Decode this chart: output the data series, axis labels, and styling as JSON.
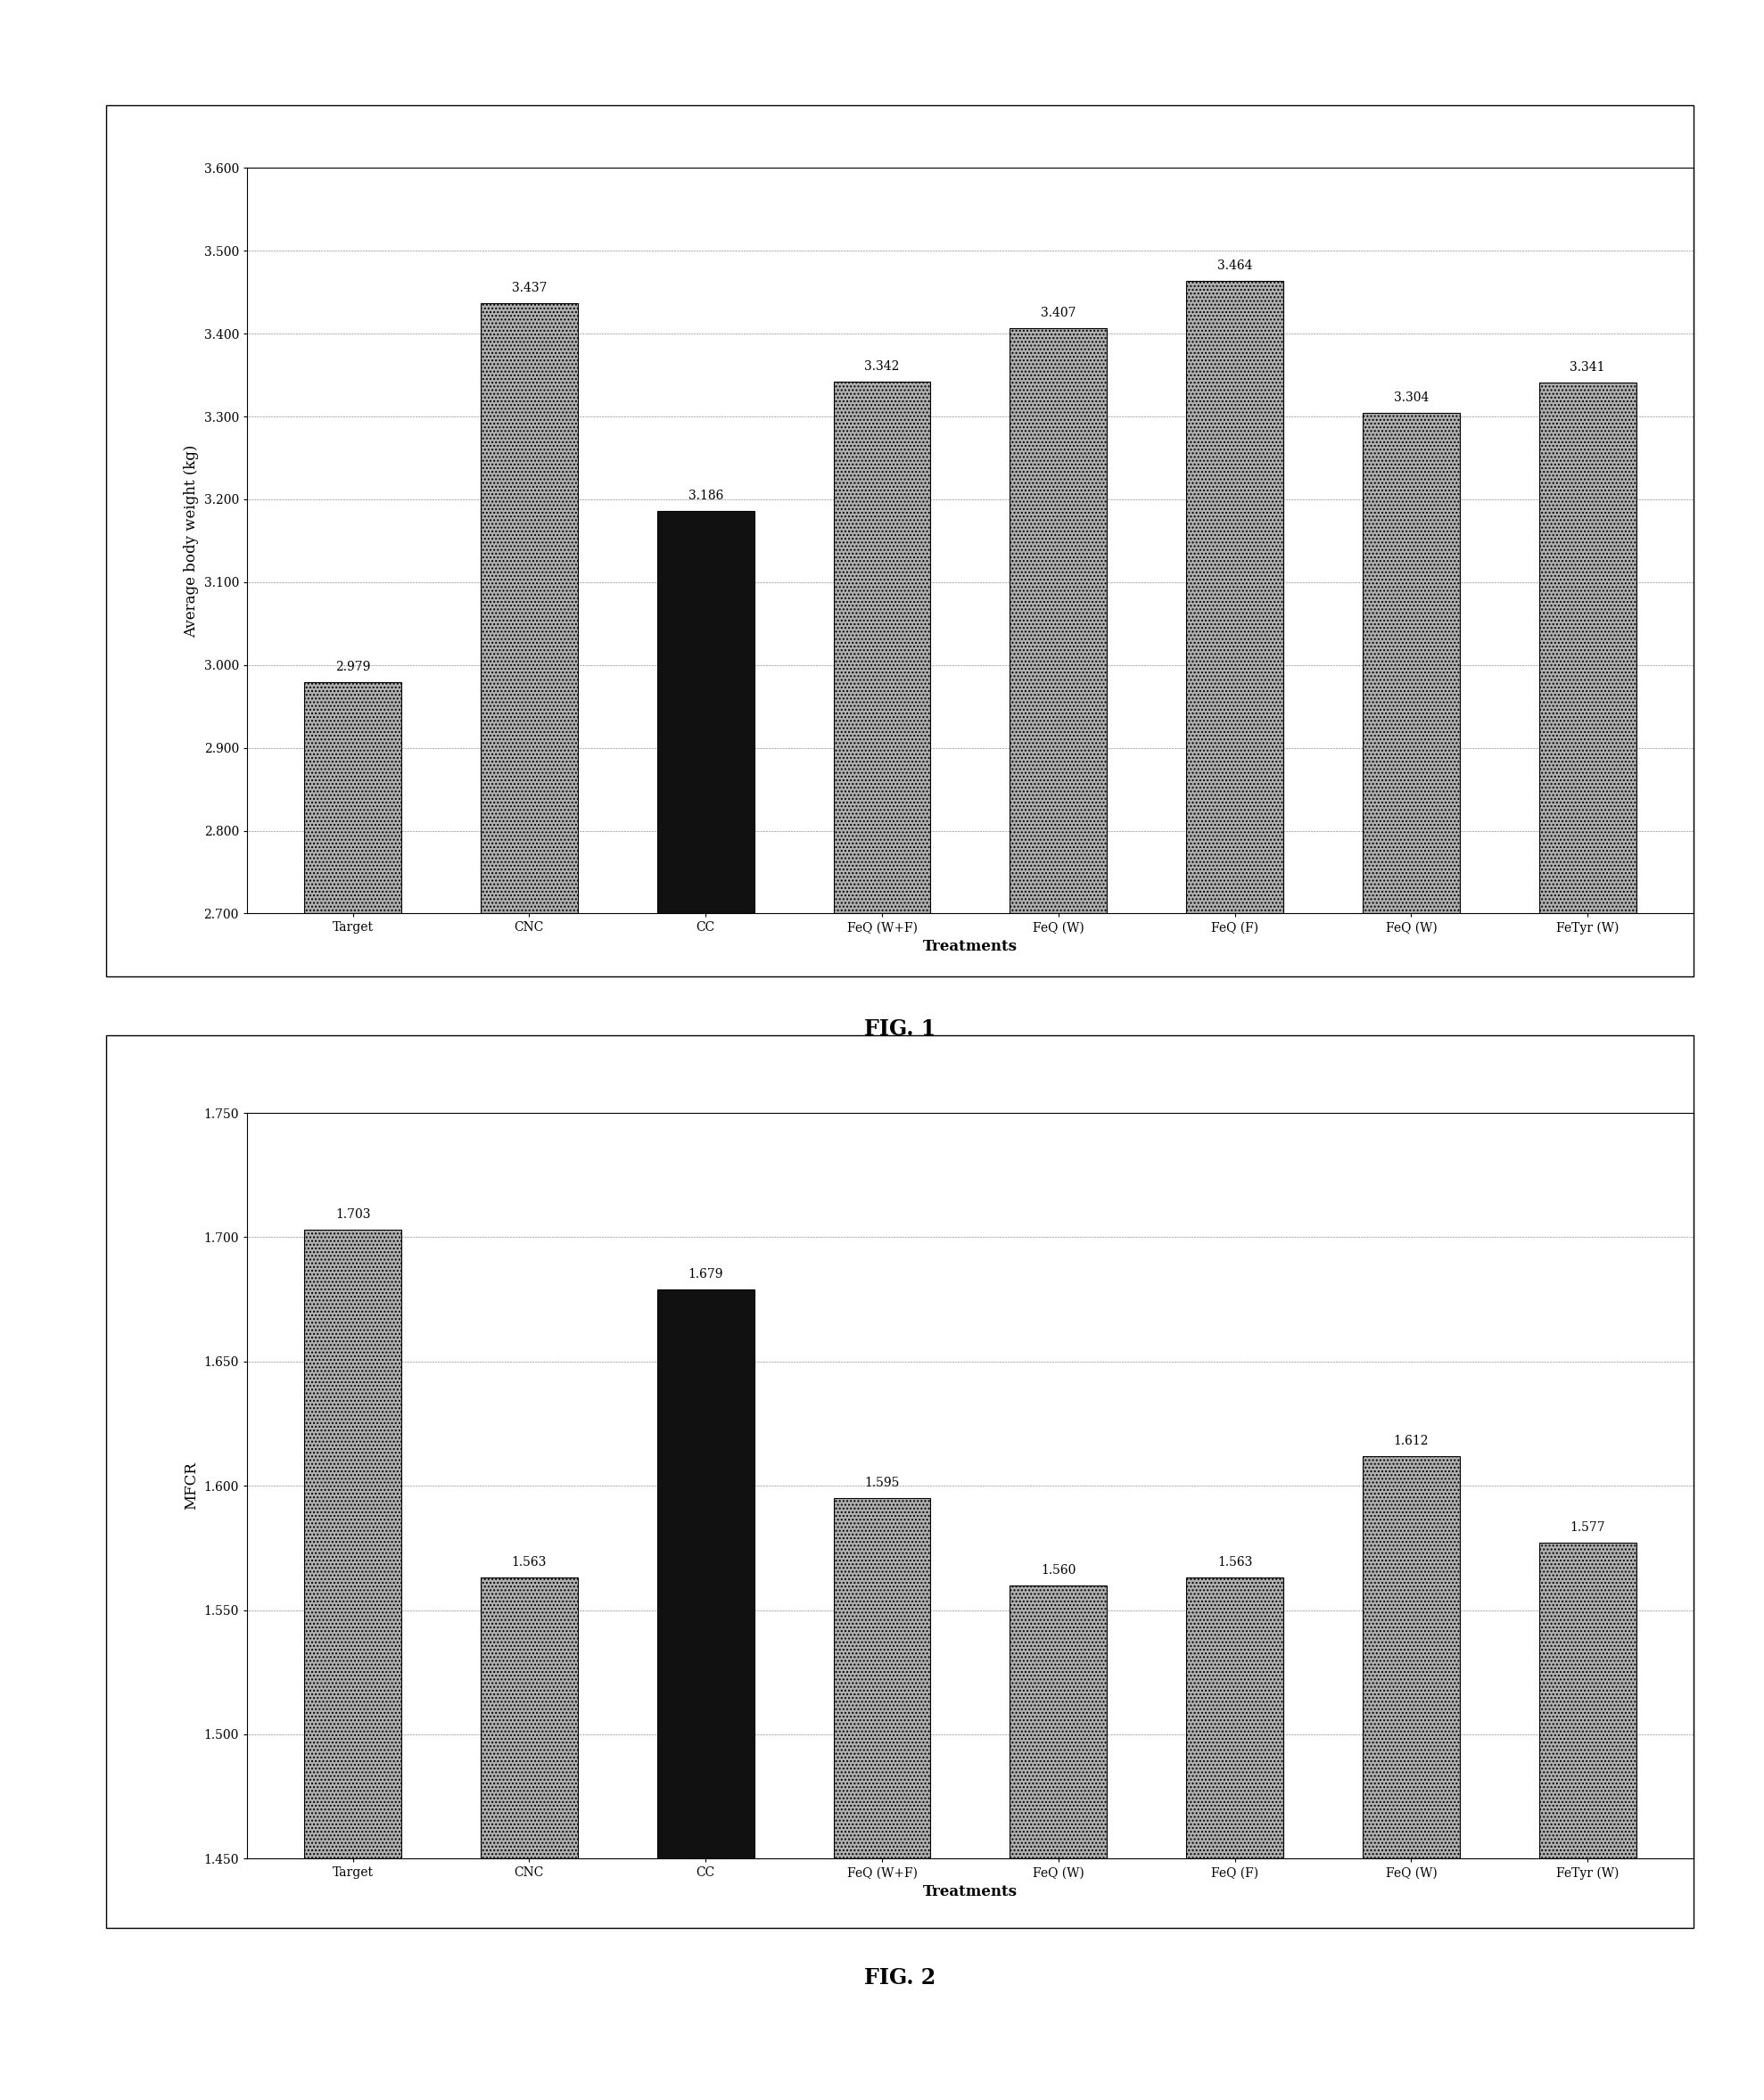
{
  "fig1": {
    "categories": [
      "Target",
      "CNC",
      "CC",
      "FeQ (W+F)",
      "FeQ (W)",
      "FeQ (F)",
      "FeQ (W)",
      "FeTyr (W)"
    ],
    "values": [
      2.979,
      3.437,
      3.186,
      3.342,
      3.407,
      3.464,
      3.304,
      3.341
    ],
    "ylabel": "Average body weight (kg)",
    "xlabel": "Treatments",
    "ylim": [
      2.7,
      3.6
    ],
    "yticks": [
      2.7,
      2.8,
      2.9,
      3.0,
      3.1,
      3.2,
      3.3,
      3.4,
      3.5,
      3.6
    ],
    "fig_label": "FIG. 1"
  },
  "fig2": {
    "categories": [
      "Target",
      "CNC",
      "CC",
      "FeQ (W+F)",
      "FeQ (W)",
      "FeQ (F)",
      "FeQ (W)",
      "FeTyr (W)"
    ],
    "values": [
      1.703,
      1.563,
      1.679,
      1.595,
      1.56,
      1.563,
      1.612,
      1.577
    ],
    "ylabel": "MFCR",
    "xlabel": "Treatments",
    "ylim": [
      1.45,
      1.75
    ],
    "yticks": [
      1.45,
      1.5,
      1.55,
      1.6,
      1.65,
      1.7,
      1.75
    ],
    "fig_label": "FIG. 2"
  },
  "bar_width": 0.55,
  "hatch_pattern": "....",
  "gray_color": "#b0b0b0",
  "black_color": "#111111",
  "fig_label_fontsize": 17,
  "axis_label_fontsize": 12,
  "tick_fontsize": 10,
  "value_fontsize": 10,
  "cc_bar_index": 2,
  "background_color": "#ffffff"
}
